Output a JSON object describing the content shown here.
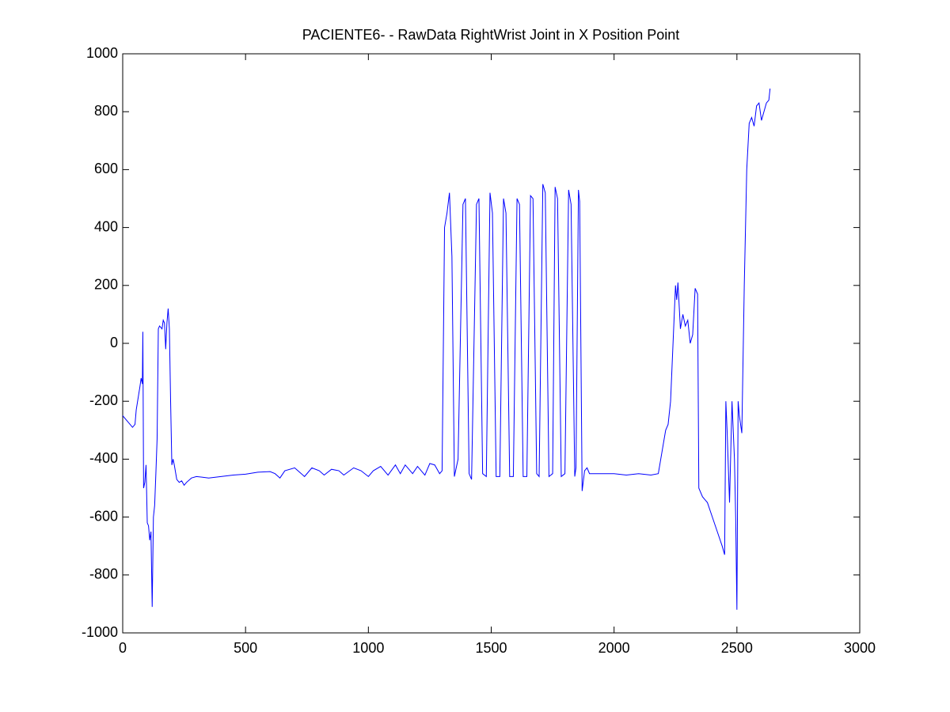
{
  "chart_data": {
    "type": "line",
    "title": "PACIENTE6- - RawData RightWrist Joint in X Position Point",
    "x": [
      0,
      20,
      40,
      50,
      55,
      70,
      75,
      80,
      82,
      85,
      90,
      95,
      100,
      105,
      110,
      115,
      120,
      125,
      130,
      135,
      140,
      145,
      150,
      160,
      165,
      170,
      175,
      180,
      185,
      190,
      195,
      200,
      205,
      210,
      220,
      230,
      240,
      250,
      260,
      280,
      300,
      350,
      400,
      450,
      500,
      550,
      600,
      620,
      640,
      660,
      700,
      720,
      740,
      770,
      800,
      820,
      850,
      880,
      900,
      940,
      970,
      1000,
      1020,
      1050,
      1080,
      1110,
      1130,
      1150,
      1180,
      1200,
      1230,
      1250,
      1270,
      1290,
      1300,
      1310,
      1320,
      1330,
      1340,
      1350,
      1365,
      1385,
      1395,
      1410,
      1420,
      1440,
      1450,
      1465,
      1480,
      1495,
      1505,
      1520,
      1535,
      1550,
      1560,
      1575,
      1590,
      1605,
      1615,
      1630,
      1645,
      1660,
      1670,
      1685,
      1695,
      1710,
      1720,
      1735,
      1750,
      1760,
      1770,
      1785,
      1800,
      1815,
      1825,
      1840,
      1845,
      1855,
      1860,
      1870,
      1880,
      1890,
      1900,
      1950,
      2000,
      2050,
      2100,
      2150,
      2180,
      2190,
      2200,
      2210,
      2220,
      2230,
      2240,
      2250,
      2255,
      2260,
      2270,
      2280,
      2290,
      2300,
      2310,
      2320,
      2330,
      2340,
      2345,
      2360,
      2380,
      2400,
      2420,
      2440,
      2450,
      2455,
      2460,
      2470,
      2480,
      2490,
      2495,
      2500,
      2505,
      2510,
      2520,
      2530,
      2540,
      2550,
      2560,
      2570,
      2580,
      2590,
      2600,
      2610,
      2620,
      2630,
      2635
    ],
    "series": [
      {
        "color": "#0000ff",
        "values": [
          -250,
          -270,
          -290,
          -280,
          -230,
          -150,
          -120,
          -140,
          40,
          -500,
          -480,
          -420,
          -620,
          -630,
          -680,
          -650,
          -910,
          -600,
          -560,
          -450,
          -330,
          50,
          60,
          50,
          80,
          70,
          -20,
          70,
          120,
          50,
          -200,
          -420,
          -400,
          -420,
          -470,
          -480,
          -475,
          -490,
          -480,
          -465,
          -460,
          -465,
          -460,
          -455,
          -452,
          -445,
          -443,
          -450,
          -465,
          -440,
          -430,
          -445,
          -460,
          -430,
          -440,
          -455,
          -435,
          -440,
          -455,
          -430,
          -440,
          -460,
          -440,
          -425,
          -455,
          -420,
          -450,
          -420,
          -450,
          -425,
          -455,
          -415,
          -420,
          -450,
          -440,
          400,
          450,
          520,
          300,
          -460,
          -400,
          480,
          500,
          -450,
          -470,
          480,
          500,
          -450,
          -460,
          520,
          450,
          -460,
          -460,
          500,
          450,
          -460,
          -460,
          500,
          480,
          -460,
          -460,
          510,
          500,
          -450,
          -460,
          550,
          520,
          -460,
          -450,
          540,
          500,
          -460,
          -450,
          530,
          480,
          -460,
          -430,
          530,
          490,
          -510,
          -440,
          -430,
          -450,
          -450,
          -450,
          -455,
          -450,
          -455,
          -450,
          -400,
          -350,
          -300,
          -280,
          -200,
          0,
          200,
          150,
          210,
          50,
          100,
          60,
          80,
          0,
          30,
          190,
          170,
          -500,
          -530,
          -550,
          -600,
          -650,
          -700,
          -730,
          -200,
          -300,
          -550,
          -200,
          -400,
          -600,
          -920,
          -200,
          -250,
          -310,
          200,
          600,
          760,
          780,
          750,
          820,
          830,
          770,
          800,
          830,
          840,
          880
        ]
      }
    ],
    "xlim": [
      0,
      3000
    ],
    "xticks": [
      0,
      500,
      1000,
      1500,
      2000,
      2500,
      3000
    ],
    "ylim": [
      -1000,
      1000
    ],
    "yticks": [
      -1000,
      -800,
      -600,
      -400,
      -200,
      0,
      200,
      400,
      600,
      800,
      1000
    ]
  }
}
